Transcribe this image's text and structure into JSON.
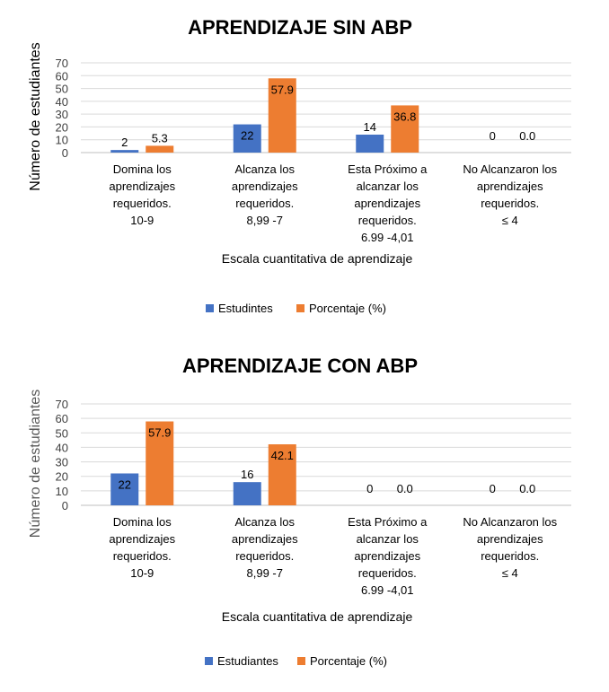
{
  "chart_data": [
    {
      "type": "bar",
      "title": "APRENDIZAJE SIN ABP",
      "xlabel": "Escala cuantitativa de aprendizaje",
      "ylabel": "Número de estudiantes",
      "ylim": [
        0,
        70
      ],
      "yticks": [
        0,
        10,
        20,
        30,
        40,
        50,
        60,
        70
      ],
      "grid": true,
      "legend_position": "bottom",
      "categories": [
        [
          "Domina los",
          "aprendizajes",
          "requeridos.",
          "10-9"
        ],
        [
          "Alcanza los",
          "aprendizajes",
          "requeridos.",
          "8,99 -7"
        ],
        [
          "Esta Próximo a",
          "alcanzar los",
          "aprendizajes",
          "requeridos.",
          "6.99 -4,01"
        ],
        [
          "No Alcanzaron los",
          "aprendizajes",
          "requeridos.",
          "≤ 4"
        ]
      ],
      "series": [
        {
          "name": "Estudintes",
          "color": "#4472c4",
          "values": [
            2,
            22,
            14,
            0
          ],
          "labels": [
            "2",
            "22",
            "14",
            "0"
          ]
        },
        {
          "name": "Porcentaje (%)",
          "color": "#ed7d31",
          "values": [
            5.3,
            57.9,
            36.8,
            0.0
          ],
          "labels": [
            "5.3",
            "57.9",
            "36.8",
            "0.0"
          ]
        }
      ]
    },
    {
      "type": "bar",
      "title": "APRENDIZAJE CON ABP",
      "xlabel": "Escala cuantitativa de aprendizaje",
      "ylabel": "Número de estudiantes",
      "ylim": [
        0,
        70
      ],
      "yticks": [
        0,
        10,
        20,
        30,
        40,
        50,
        60,
        70
      ],
      "grid": true,
      "legend_position": "bottom",
      "categories": [
        [
          "Domina los",
          "aprendizajes",
          "requeridos.",
          "10-9"
        ],
        [
          "Alcanza los",
          "aprendizajes",
          "requeridos.",
          "8,99 -7"
        ],
        [
          "Esta Próximo a",
          "alcanzar los",
          "aprendizajes",
          "requeridos.",
          "6.99 -4,01"
        ],
        [
          "No Alcanzaron los",
          "aprendizajes",
          "requeridos.",
          "≤ 4"
        ]
      ],
      "series": [
        {
          "name": "Estudiantes",
          "color": "#4472c4",
          "values": [
            22,
            16,
            0,
            0
          ],
          "labels": [
            "22",
            "16",
            "0",
            "0"
          ]
        },
        {
          "name": "Porcentaje (%)",
          "color": "#ed7d31",
          "values": [
            57.9,
            42.1,
            0.0,
            0.0
          ],
          "labels": [
            "57.9",
            "42.1",
            "0.0",
            "0.0"
          ]
        }
      ]
    }
  ]
}
